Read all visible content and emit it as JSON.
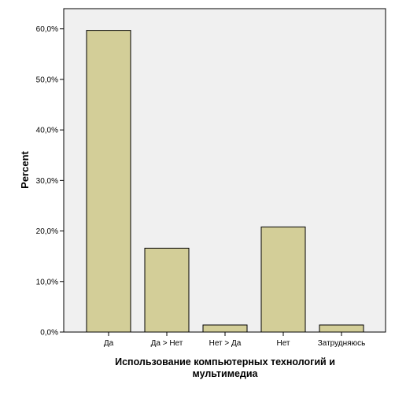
{
  "chart_data": {
    "type": "bar",
    "title": "",
    "xlabel": "Использование компьютерных технологий и мультимедиа",
    "xlabel_lines": [
      "Использование компьютерных технологий и",
      "мультимедиа"
    ],
    "ylabel": "Percent",
    "categories": [
      "Да",
      "Да > Нет",
      "Нет > Да",
      "Нет",
      "Затрудняюсь"
    ],
    "values": [
      59.7,
      16.6,
      1.4,
      20.8,
      1.4
    ],
    "ylim": [
      0,
      64
    ],
    "yticks": [
      0,
      10,
      20,
      30,
      40,
      50,
      60
    ],
    "ytick_labels": [
      "0,0%",
      "10,0%",
      "20,0%",
      "30,0%",
      "40,0%",
      "50,0%",
      "60,0%"
    ],
    "grid": false,
    "legend": "none",
    "colors": {
      "bar_fill": "#D3CE98",
      "bar_stroke": "#000000",
      "plot_background": "#F0F0F0",
      "page_background": "#FFFFFF"
    }
  }
}
